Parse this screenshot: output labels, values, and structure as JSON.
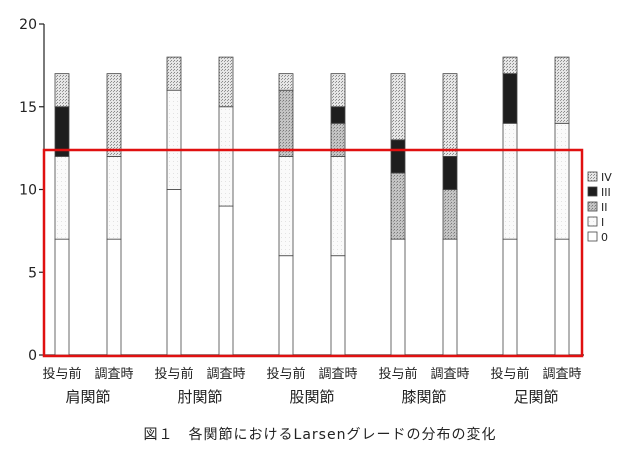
{
  "caption": "図１　各関節におけるLarsenグレードの分布の変化",
  "chart_data": {
    "type": "bar",
    "stacked": true,
    "y_ticks": [
      0,
      5,
      10,
      15,
      20
    ],
    "ylim": [
      0,
      20
    ],
    "grid": false,
    "legend_position": "right",
    "bar_labels": [
      "投与前",
      "調査時",
      "投与前",
      "調査時",
      "投与前",
      "調査時",
      "投与前",
      "調査時",
      "投与前",
      "調査時"
    ],
    "groups": [
      "肩関節",
      "肘関節",
      "股関節",
      "膝関節",
      "足関節"
    ],
    "series": [
      {
        "name": "0",
        "color": "#ffffff",
        "values": [
          7,
          7,
          10,
          9,
          6,
          6,
          7,
          7,
          7,
          7
        ]
      },
      {
        "name": "I",
        "color": "#f7f7f7",
        "values": [
          5,
          5,
          6,
          6,
          6,
          6,
          0,
          0,
          7,
          7
        ]
      },
      {
        "name": "II",
        "color": "#b8b8b8",
        "values": [
          0,
          0,
          0,
          0,
          4,
          2,
          4,
          3,
          0,
          0
        ]
      },
      {
        "name": "III",
        "color": "#222222",
        "values": [
          3,
          0,
          0,
          0,
          0,
          1,
          2,
          2,
          3,
          0
        ]
      },
      {
        "name": "IV",
        "color": "#cfcfcf",
        "values": [
          2,
          5,
          2,
          3,
          1,
          2,
          4,
          5,
          1,
          4
        ]
      }
    ],
    "legend_order": [
      "IV",
      "III",
      "II",
      "I",
      "0"
    ],
    "highlight_box_color": "#e01010"
  }
}
